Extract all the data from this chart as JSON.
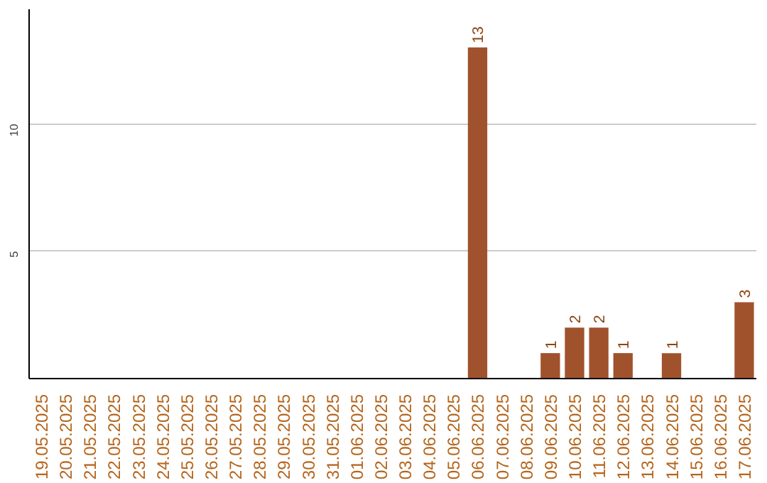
{
  "chart_data": {
    "type": "bar",
    "categories": [
      "19.05.2025",
      "20.05.2025",
      "21.05.2025",
      "22.05.2025",
      "23.05.2025",
      "24.05.2025",
      "25.05.2025",
      "26.05.2025",
      "27.05.2025",
      "28.05.2025",
      "29.05.2025",
      "30.05.2025",
      "31.05.2025",
      "01.06.2025",
      "02.06.2025",
      "03.06.2025",
      "04.06.2025",
      "05.06.2025",
      "06.06.2025",
      "07.06.2025",
      "08.06.2025",
      "09.06.2025",
      "10.06.2025",
      "11.06.2025",
      "12.06.2025",
      "13.06.2025",
      "14.06.2025",
      "15.06.2025",
      "16.06.2025",
      "17.06.2025"
    ],
    "values": [
      0,
      0,
      0,
      0,
      0,
      0,
      0,
      0,
      0,
      0,
      0,
      0,
      0,
      0,
      0,
      0,
      0,
      0,
      13,
      0,
      0,
      1,
      2,
      2,
      1,
      0,
      1,
      0,
      0,
      3
    ],
    "value_labels": [
      null,
      null,
      null,
      null,
      null,
      null,
      null,
      null,
      null,
      null,
      null,
      null,
      null,
      null,
      null,
      null,
      null,
      null,
      "13",
      null,
      null,
      "1",
      "2",
      "2",
      "1",
      null,
      "1",
      null,
      null,
      "3"
    ],
    "color": "#a0522d",
    "ylim": [
      0,
      14.5
    ],
    "yticks": [
      5,
      10
    ],
    "grid": "y"
  }
}
